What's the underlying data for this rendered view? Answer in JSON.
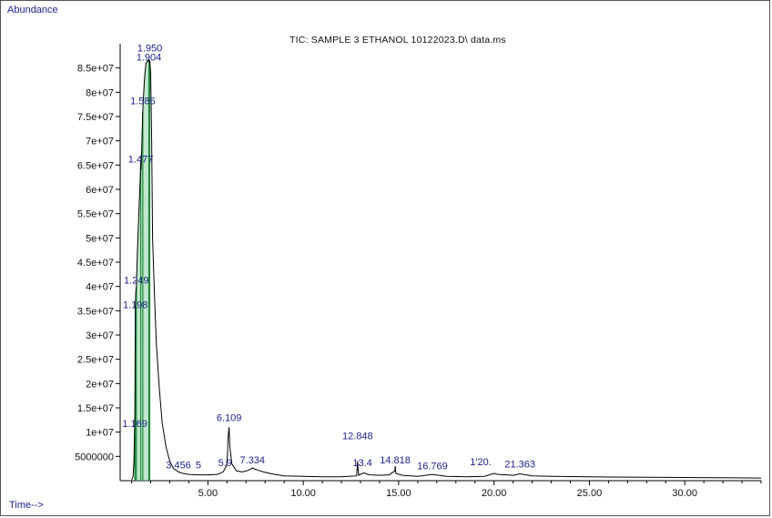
{
  "chart_data": {
    "type": "line",
    "title": "TIC: SAMPLE 3 ETHANOL 10122023.D\\ data.ms",
    "ylabel": "Abundance",
    "xlabel": "Time-->",
    "xlim": [
      0.4,
      34.0
    ],
    "ylim": [
      0,
      90000000
    ],
    "grid": false,
    "x_ticks": [
      5,
      10,
      15,
      20,
      25,
      30
    ],
    "x_tick_labels": [
      "5.00",
      "10.00",
      "15.00",
      "20.00",
      "25.00",
      "30.00"
    ],
    "y_ticks": [
      5000000,
      10000000,
      15000000,
      20000000,
      25000000,
      30000000,
      35000000,
      40000000,
      45000000,
      50000000,
      55000000,
      60000000,
      65000000,
      70000000,
      75000000,
      80000000,
      85000000
    ],
    "y_tick_labels": [
      "5000000",
      "1e+07",
      "1.5e+07",
      "2e+07",
      "2.5e+07",
      "3e+07",
      "3.5e+07",
      "4e+07",
      "4.5e+07",
      "5e+07",
      "5.5e+07",
      "6e+07",
      "6.5e+07",
      "7e+07",
      "7.5e+07",
      "8e+07",
      "8.5e+07"
    ],
    "series": [
      {
        "x": [
          1.0,
          1.08,
          1.12,
          1.15,
          1.169,
          1.18,
          1.198,
          1.22,
          1.249,
          1.3,
          1.38,
          1.45,
          1.477,
          1.5,
          1.54,
          1.586,
          1.62,
          1.68,
          1.75,
          1.85,
          1.904,
          1.93,
          1.95,
          2.0,
          2.05,
          2.1,
          2.2,
          2.3,
          2.45,
          2.6,
          2.8,
          3.0,
          3.2,
          3.456,
          3.7,
          4.0,
          4.5,
          5.0,
          5.5,
          5.8,
          5.97,
          6.02,
          6.06,
          6.109,
          6.15,
          6.25,
          6.5,
          6.8,
          7.1,
          7.334,
          7.6,
          8.0,
          8.5,
          9.0,
          10.0,
          11.0,
          12.0,
          12.8,
          12.848,
          12.9,
          13.1,
          13.2,
          13.3,
          13.5,
          14.0,
          14.5,
          14.8,
          14.818,
          14.85,
          15.2,
          16.0,
          16.769,
          17.5,
          18.5,
          19.5,
          20.0,
          20.2,
          21.0,
          21.363,
          22.0,
          23.0,
          24.0,
          25.0,
          26.0,
          28.0,
          30.0,
          32.0,
          34.0
        ],
        "y": [
          200000,
          800000,
          4000000,
          10000000,
          13000000,
          20000000,
          36000000,
          39000000,
          40000000,
          47000000,
          55000000,
          62000000,
          66000000,
          64000000,
          70000000,
          76000000,
          79000000,
          83000000,
          86000000,
          86500000,
          86800000,
          86000000,
          86600000,
          84000000,
          70000000,
          50000000,
          38000000,
          28000000,
          19000000,
          12000000,
          7000000,
          4000000,
          2500000,
          1800000,
          1500000,
          1300000,
          1200000,
          1200000,
          1300000,
          1800000,
          3000000,
          5000000,
          9000000,
          11000000,
          7000000,
          3500000,
          2000000,
          1800000,
          2100000,
          2600000,
          2200000,
          1700000,
          1300000,
          1000000,
          900000,
          800000,
          800000,
          1000000,
          4000000,
          1100000,
          1500000,
          1600000,
          1400000,
          1200000,
          1100000,
          1200000,
          2000000,
          3000000,
          1500000,
          1100000,
          900000,
          1300000,
          900000,
          800000,
          900000,
          1500000,
          1300000,
          1100000,
          1400000,
          1000000,
          900000,
          850000,
          800000,
          750000,
          700000,
          650000,
          600000,
          550000
        ]
      }
    ],
    "integration_peaks": [
      1.169,
      1.198,
      1.249,
      1.477,
      1.586,
      1.904,
      1.95
    ],
    "annotations": [
      {
        "x": 1.95,
        "y": 87800000,
        "text": "1.950"
      },
      {
        "x": 1.904,
        "y": 86000000,
        "text": "1.904"
      },
      {
        "x": 1.586,
        "y": 77000000,
        "text": "1.586"
      },
      {
        "x": 1.477,
        "y": 65000000,
        "text": "1.477"
      },
      {
        "x": 1.249,
        "y": 40000000,
        "text": "1.249"
      },
      {
        "x": 1.198,
        "y": 35000000,
        "text": "1.198"
      },
      {
        "x": 1.169,
        "y": 10500000,
        "text": "1.169"
      },
      {
        "x": 6.109,
        "y": 11700000,
        "text": "6.109"
      },
      {
        "x": 12.848,
        "y": 8000000,
        "text": "12.848"
      },
      {
        "x": 3.456,
        "y": 2000000,
        "text": "3.456"
      },
      {
        "x": 4.5,
        "y": 2000000,
        "text": "5"
      },
      {
        "x": 5.9,
        "y": 2400000,
        "text": "5.9"
      },
      {
        "x": 7.334,
        "y": 3000000,
        "text": "7.334"
      },
      {
        "x": 13.1,
        "y": 2400000,
        "text": "13.4"
      },
      {
        "x": 14.818,
        "y": 3000000,
        "text": "14.818"
      },
      {
        "x": 16.769,
        "y": 1800000,
        "text": "16.769"
      },
      {
        "x": 19.3,
        "y": 2600000,
        "text": "1'20."
      },
      {
        "x": 21.363,
        "y": 2200000,
        "text": "21.363"
      }
    ]
  }
}
